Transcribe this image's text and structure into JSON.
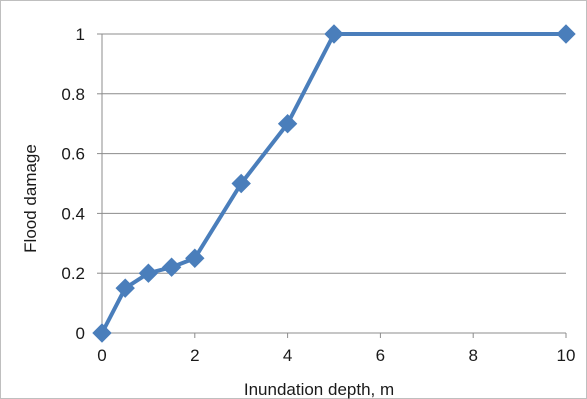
{
  "chart_data": {
    "type": "line",
    "title": "",
    "xlabel": "Inundation depth, m",
    "ylabel": "Flood damage",
    "xlim": [
      0,
      10
    ],
    "ylim": [
      0,
      1
    ],
    "x_ticks": [
      0,
      2,
      4,
      6,
      8,
      10
    ],
    "y_ticks": [
      0,
      0.2,
      0.4,
      0.6,
      0.8,
      1
    ],
    "x_tick_labels": [
      "0",
      "2",
      "4",
      "6",
      "8",
      "10"
    ],
    "y_tick_labels": [
      "0",
      "0.2",
      "0.4",
      "0.6",
      "0.8",
      "1"
    ],
    "grid": "horizontal",
    "legend": "none",
    "marker": "diamond",
    "series": [
      {
        "x": [
          0,
          0.5,
          1,
          1.5,
          2,
          3,
          4,
          5,
          10
        ],
        "y": [
          0,
          0.15,
          0.2,
          0.22,
          0.25,
          0.5,
          0.7,
          1,
          1
        ],
        "color": "#4a7ebb"
      }
    ],
    "gridColor": "#8c8c8c",
    "axisColor": "#8c8c8c"
  }
}
